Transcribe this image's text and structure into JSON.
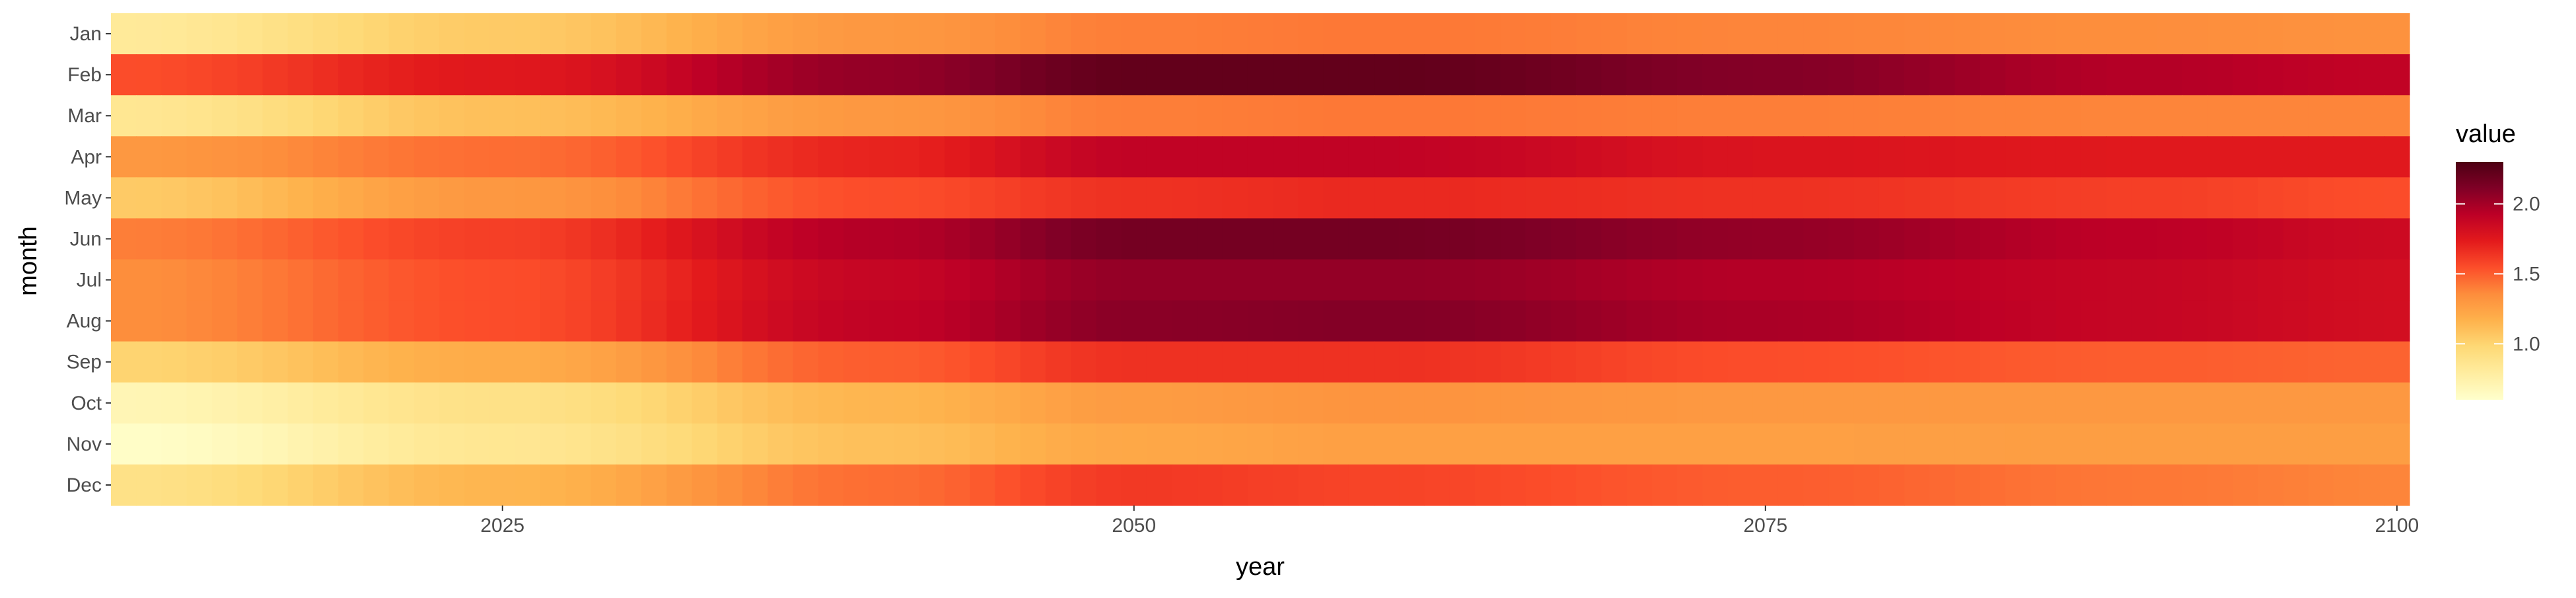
{
  "chart_data": {
    "type": "heatmap",
    "title": "",
    "xlabel": "year",
    "ylabel": "month",
    "months": [
      "Jan",
      "Feb",
      "Mar",
      "Apr",
      "May",
      "Jun",
      "Jul",
      "Aug",
      "Sep",
      "Oct",
      "Nov",
      "Dec"
    ],
    "x_start": 2010,
    "x_end": 2100,
    "xlim": [
      2009.5,
      2100.5
    ],
    "x_ticks": [
      2025,
      2050,
      2075,
      2100
    ],
    "x_tick_labels": [
      "2025",
      "2050",
      "2075",
      "2100"
    ],
    "value_keyframes": {
      "years": [
        2010,
        2025,
        2040,
        2050,
        2060,
        2075,
        2090,
        2100
      ],
      "rows": [
        [
          0.82,
          1.05,
          1.3,
          1.4,
          1.42,
          1.38,
          1.35,
          1.33
        ],
        [
          1.55,
          1.75,
          2.05,
          2.22,
          2.22,
          2.1,
          1.95,
          1.9
        ],
        [
          0.85,
          1.1,
          1.3,
          1.4,
          1.42,
          1.4,
          1.38,
          1.38
        ],
        [
          1.3,
          1.45,
          1.7,
          1.9,
          1.9,
          1.78,
          1.75,
          1.75
        ],
        [
          1.05,
          1.3,
          1.55,
          1.65,
          1.68,
          1.65,
          1.6,
          1.55
        ],
        [
          1.4,
          1.6,
          1.95,
          2.15,
          2.15,
          2.05,
          1.92,
          1.85
        ],
        [
          1.35,
          1.55,
          1.88,
          2.05,
          2.05,
          1.95,
          1.88,
          1.82
        ],
        [
          1.35,
          1.55,
          1.9,
          2.08,
          2.1,
          1.98,
          1.88,
          1.82
        ],
        [
          1.0,
          1.2,
          1.5,
          1.65,
          1.65,
          1.55,
          1.5,
          1.48
        ],
        [
          0.7,
          0.9,
          1.15,
          1.28,
          1.32,
          1.3,
          1.3,
          1.3
        ],
        [
          0.62,
          0.85,
          1.1,
          1.22,
          1.26,
          1.26,
          1.27,
          1.27
        ],
        [
          0.9,
          1.15,
          1.45,
          1.62,
          1.58,
          1.5,
          1.42,
          1.38
        ]
      ]
    },
    "fill_scale": {
      "name": "YlOrRd",
      "domain": [
        0.6,
        2.3
      ],
      "colors": [
        "#ffffcc",
        "#ffeda0",
        "#fed976",
        "#feb24c",
        "#fd8d3c",
        "#fc4e2a",
        "#e31a1c",
        "#bd0026",
        "#800026",
        "#4d0013"
      ]
    },
    "legend": {
      "title": "value",
      "position": "right",
      "breaks": [
        1.0,
        1.5,
        2.0
      ],
      "labels": [
        "1.0",
        "1.5",
        "2.0"
      ]
    },
    "grid": false
  }
}
